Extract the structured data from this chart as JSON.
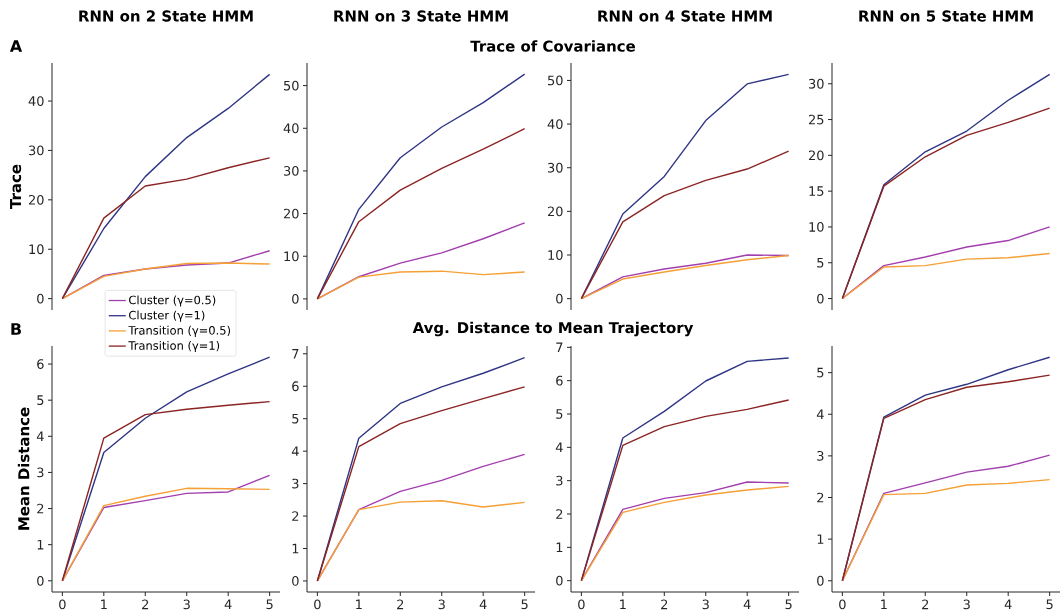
{
  "chart_data": [
    {
      "type": "line",
      "title": "RNN on 2 State HMM",
      "ylabel": "Trace",
      "annotations": [
        "A"
      ],
      "x": [
        0,
        1,
        2,
        3,
        4,
        5
      ],
      "ylim": [
        -2.3,
        47.7
      ],
      "yticks": [
        0,
        10,
        20,
        30,
        40
      ],
      "tick_labels": "y",
      "legend": "bottom",
      "marker": "none",
      "line_style": "solid",
      "series": [
        {
          "name": "Cluster (γ=0.5)",
          "color": "#a23fae",
          "values": [
            0,
            4.7,
            6.0,
            6.8,
            7.2,
            9.7
          ]
        },
        {
          "name": "Cluster (γ=1)",
          "color": "#2f3584",
          "values": [
            0,
            14.2,
            24.7,
            32.6,
            38.5,
            45.4
          ]
        },
        {
          "name": "Transition (γ=0.5)",
          "color": "#f5a035",
          "values": [
            0,
            4.5,
            6.0,
            7.1,
            7.2,
            7.0
          ]
        },
        {
          "name": "Transition (γ=1)",
          "color": "#8b2424",
          "values": [
            0,
            16.3,
            22.8,
            24.2,
            26.5,
            28.5
          ]
        }
      ]
    },
    {
      "type": "line",
      "title": "RNN on 3 State HMM",
      "subtitle": "Trace of Covariance",
      "x": [
        0,
        1,
        2,
        3,
        4,
        5
      ],
      "ylim": [
        -2.6,
        55.3
      ],
      "yticks": [
        0,
        10,
        20,
        30,
        40,
        50
      ],
      "tick_labels": "y",
      "marker": "none",
      "line_style": "solid",
      "series": [
        {
          "color": "#a23fae",
          "values": [
            0,
            5.2,
            8.4,
            10.8,
            14.1,
            17.8
          ]
        },
        {
          "color": "#2f3584",
          "values": [
            0,
            21.0,
            33.1,
            40.3,
            46.0,
            52.7
          ]
        },
        {
          "color": "#f5a035",
          "values": [
            0,
            5.1,
            6.3,
            6.5,
            5.7,
            6.3
          ]
        },
        {
          "color": "#8b2424",
          "values": [
            0,
            18.1,
            25.5,
            30.6,
            35.1,
            39.9
          ]
        }
      ]
    },
    {
      "type": "line",
      "title": "RNN on 4 State HMM",
      "x": [
        0,
        1,
        2,
        3,
        4,
        5
      ],
      "ylim": [
        -2.6,
        54.0
      ],
      "yticks": [
        0,
        10,
        20,
        30,
        40,
        50
      ],
      "tick_labels": "y",
      "marker": "none",
      "line_style": "solid",
      "series": [
        {
          "color": "#a23fae",
          "values": [
            0,
            5.0,
            6.8,
            8.1,
            10.0,
            9.9
          ]
        },
        {
          "color": "#2f3584",
          "values": [
            0,
            19.4,
            28.0,
            40.8,
            49.2,
            51.4
          ]
        },
        {
          "color": "#f5a035",
          "values": [
            0,
            4.5,
            6.1,
            7.6,
            8.9,
            9.9
          ]
        },
        {
          "color": "#8b2424",
          "values": [
            0,
            17.6,
            23.6,
            27.1,
            29.7,
            33.8
          ]
        }
      ]
    },
    {
      "type": "line",
      "title": "RNN on 5 State HMM",
      "x": [
        0,
        1,
        2,
        3,
        4,
        5
      ],
      "ylim": [
        -1.6,
        32.9
      ],
      "yticks": [
        0,
        5,
        10,
        15,
        20,
        25,
        30
      ],
      "tick_labels": "y",
      "marker": "none",
      "line_style": "solid",
      "series": [
        {
          "color": "#a23fae",
          "values": [
            0,
            4.6,
            5.8,
            7.2,
            8.1,
            10.0
          ]
        },
        {
          "color": "#2f3584",
          "values": [
            0,
            15.9,
            20.5,
            23.4,
            27.7,
            31.3
          ]
        },
        {
          "color": "#f5a035",
          "values": [
            0,
            4.4,
            4.6,
            5.5,
            5.7,
            6.3
          ]
        },
        {
          "color": "#8b2424",
          "values": [
            0,
            15.7,
            19.8,
            22.8,
            24.6,
            26.6
          ]
        }
      ]
    },
    {
      "type": "line",
      "ylabel": "Mean Distance",
      "annotations": [
        "B"
      ],
      "x": [
        0,
        1,
        2,
        3,
        4,
        5
      ],
      "xlim": [
        -0.25,
        5.25
      ],
      "ylim": [
        -0.31,
        6.5
      ],
      "xticks": [
        0,
        1,
        2,
        3,
        4,
        5
      ],
      "yticks": [
        0,
        1,
        2,
        3,
        4,
        5,
        6
      ],
      "marker": "none",
      "line_style": "solid",
      "series": [
        {
          "color": "#a23fae",
          "values": [
            0,
            2.03,
            2.22,
            2.42,
            2.46,
            2.92
          ]
        },
        {
          "color": "#2f3584",
          "values": [
            0,
            3.55,
            4.5,
            5.23,
            5.73,
            6.19
          ]
        },
        {
          "color": "#f5a035",
          "values": [
            0,
            2.08,
            2.34,
            2.56,
            2.55,
            2.53
          ]
        },
        {
          "color": "#8b2424",
          "values": [
            0,
            3.95,
            4.6,
            4.75,
            4.86,
            4.96
          ]
        }
      ]
    },
    {
      "type": "line",
      "subtitle": "Avg. Distance to Mean Trajectory",
      "x": [
        0,
        1,
        2,
        3,
        4,
        5
      ],
      "xlim": [
        -0.25,
        5.25
      ],
      "ylim": [
        -0.34,
        7.24
      ],
      "xticks": [
        0,
        1,
        2,
        3,
        4,
        5
      ],
      "yticks": [
        0,
        1,
        2,
        3,
        4,
        5,
        6,
        7
      ],
      "marker": "none",
      "line_style": "solid",
      "series": [
        {
          "color": "#a23fae",
          "values": [
            0,
            2.2,
            2.76,
            3.1,
            3.53,
            3.9
          ]
        },
        {
          "color": "#2f3584",
          "values": [
            0,
            4.4,
            5.47,
            5.98,
            6.4,
            6.88
          ]
        },
        {
          "color": "#f5a035",
          "values": [
            0,
            2.2,
            2.43,
            2.47,
            2.28,
            2.42
          ]
        },
        {
          "color": "#8b2424",
          "values": [
            0,
            4.14,
            4.85,
            5.25,
            5.62,
            5.98
          ]
        }
      ]
    },
    {
      "type": "line",
      "x": [
        0,
        1,
        2,
        3,
        4,
        5
      ],
      "xlim": [
        -0.25,
        5.25
      ],
      "ylim": [
        -0.34,
        7.04
      ],
      "xticks": [
        0,
        1,
        2,
        3,
        4,
        5
      ],
      "yticks": [
        0,
        1,
        2,
        3,
        4,
        5,
        6,
        7
      ],
      "marker": "none",
      "line_style": "solid",
      "series": [
        {
          "color": "#a23fae",
          "values": [
            0,
            2.14,
            2.47,
            2.64,
            2.96,
            2.93
          ]
        },
        {
          "color": "#2f3584",
          "values": [
            0,
            4.28,
            5.08,
            5.99,
            6.58,
            6.68
          ]
        },
        {
          "color": "#f5a035",
          "values": [
            0,
            2.05,
            2.35,
            2.57,
            2.72,
            2.83
          ]
        },
        {
          "color": "#8b2424",
          "values": [
            0,
            4.06,
            4.62,
            4.93,
            5.14,
            5.42
          ]
        }
      ]
    },
    {
      "type": "line",
      "x": [
        0,
        1,
        2,
        3,
        4,
        5
      ],
      "xlim": [
        -0.25,
        5.25
      ],
      "ylim": [
        -0.27,
        5.64
      ],
      "xticks": [
        0,
        1,
        2,
        3,
        4,
        5
      ],
      "yticks": [
        0,
        1,
        2,
        3,
        4,
        5
      ],
      "marker": "none",
      "line_style": "solid",
      "series": [
        {
          "color": "#a23fae",
          "values": [
            0,
            2.1,
            2.35,
            2.61,
            2.75,
            3.02
          ]
        },
        {
          "color": "#2f3584",
          "values": [
            0,
            3.93,
            4.46,
            4.72,
            5.07,
            5.37
          ]
        },
        {
          "color": "#f5a035",
          "values": [
            0,
            2.07,
            2.1,
            2.3,
            2.34,
            2.43
          ]
        },
        {
          "color": "#8b2424",
          "values": [
            0,
            3.9,
            4.35,
            4.65,
            4.78,
            4.94
          ]
        }
      ]
    }
  ]
}
